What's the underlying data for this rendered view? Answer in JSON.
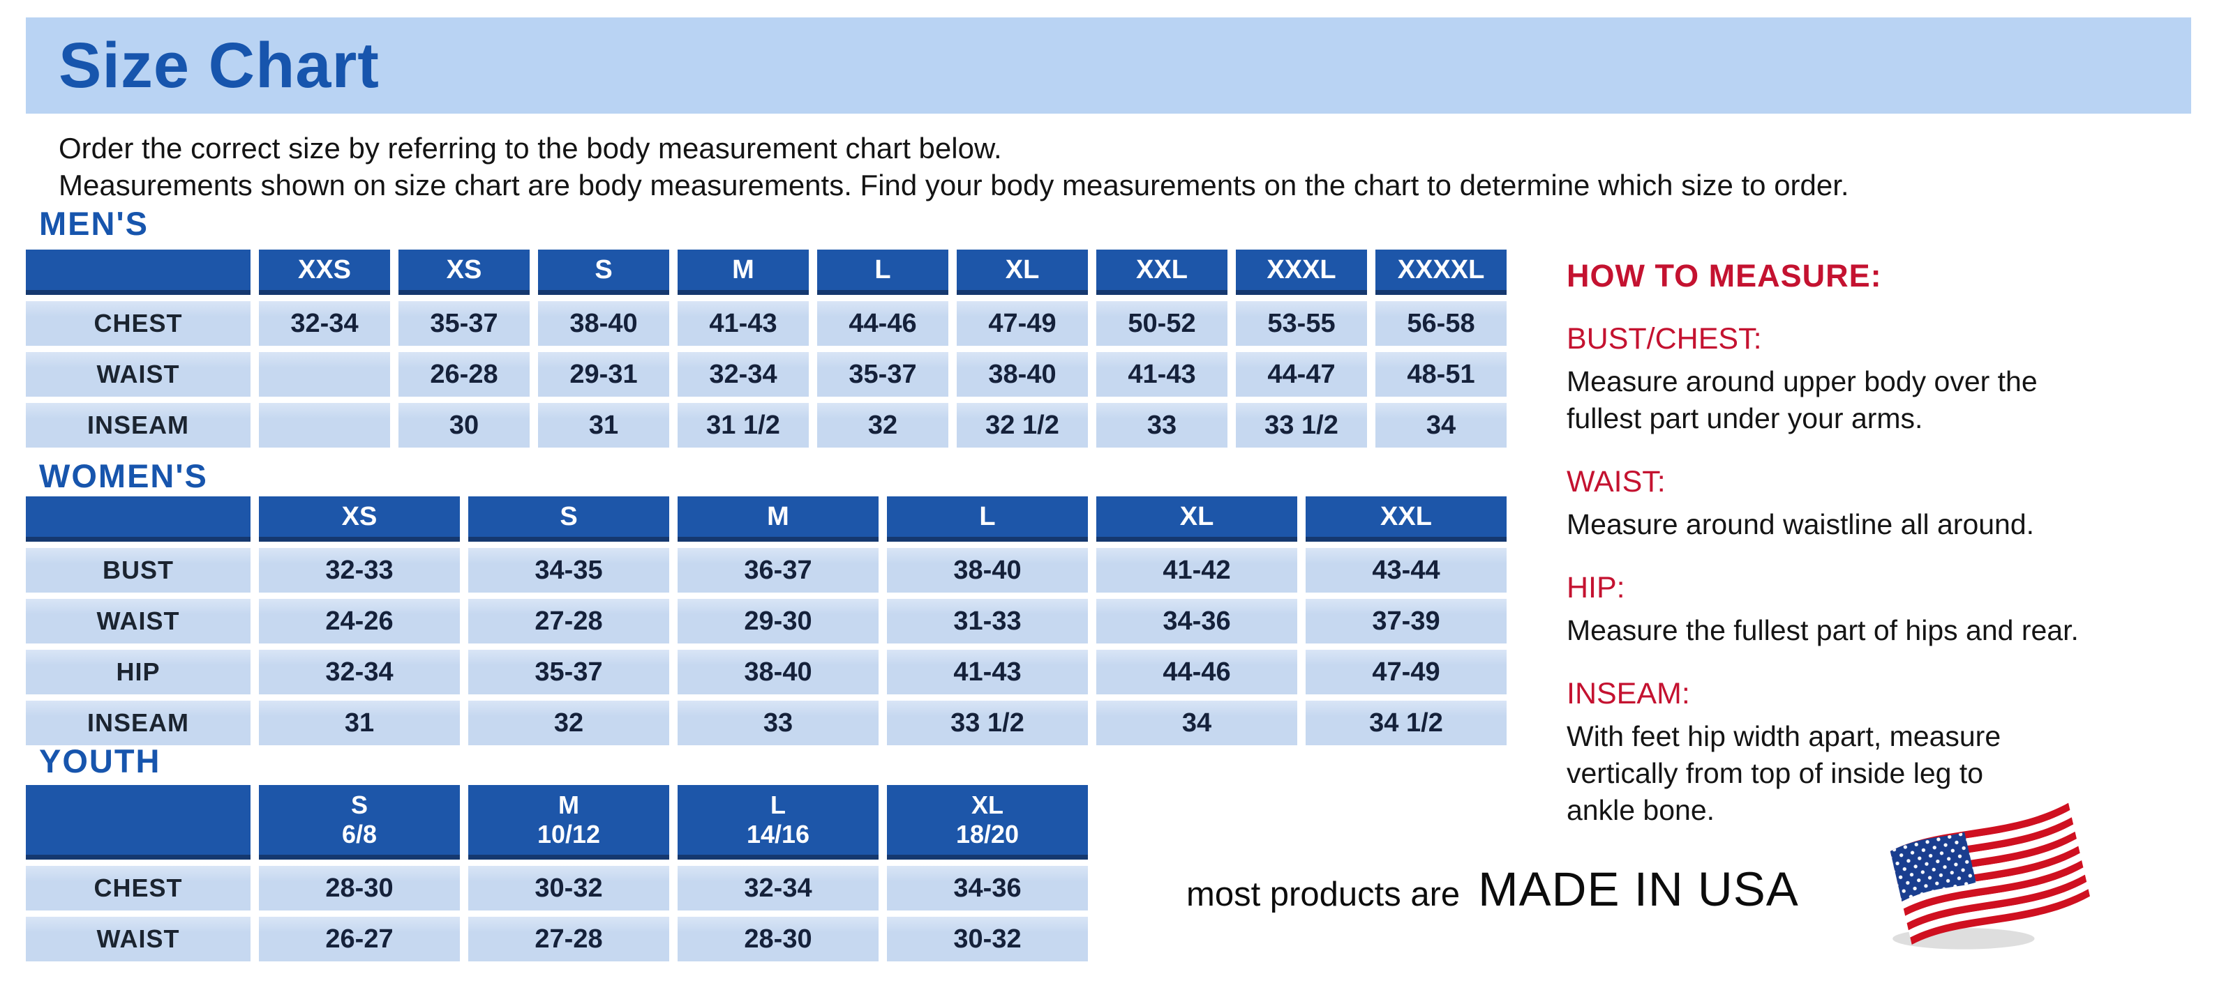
{
  "title": "Size Chart",
  "intro": {
    "line1": "Order the correct size by referring to the body measurement chart below.",
    "line2": "Measurements shown on size chart are body measurements.  Find your body measurements on the chart to determine which size to order."
  },
  "tables": [
    {
      "id": "mens",
      "heading": "MEN'S",
      "columns": [
        "XXS",
        "XS",
        "S",
        "M",
        "L",
        "XL",
        "XXL",
        "XXXL",
        "XXXXL"
      ],
      "rows": [
        {
          "label": "CHEST",
          "values": [
            "32-34",
            "35-37",
            "38-40",
            "41-43",
            "44-46",
            "47-49",
            "50-52",
            "53-55",
            "56-58"
          ]
        },
        {
          "label": "WAIST",
          "values": [
            "",
            "26-28",
            "29-31",
            "32-34",
            "35-37",
            "38-40",
            "41-43",
            "44-47",
            "48-51"
          ]
        },
        {
          "label": "INSEAM",
          "values": [
            "",
            "30",
            "31",
            "31 1/2",
            "32",
            "32 1/2",
            "33",
            "33 1/2",
            "34"
          ]
        }
      ]
    },
    {
      "id": "womens",
      "heading": "WOMEN'S",
      "columns": [
        "XS",
        "S",
        "M",
        "L",
        "XL",
        "XXL"
      ],
      "rows": [
        {
          "label": "BUST",
          "values": [
            "32-33",
            "34-35",
            "36-37",
            "38-40",
            "41-42",
            "43-44"
          ]
        },
        {
          "label": "WAIST",
          "values": [
            "24-26",
            "27-28",
            "29-30",
            "31-33",
            "34-36",
            "37-39"
          ]
        },
        {
          "label": "HIP",
          "values": [
            "32-34",
            "35-37",
            "38-40",
            "41-43",
            "44-46",
            "47-49"
          ]
        },
        {
          "label": "INSEAM",
          "values": [
            "31",
            "32",
            "33",
            "33 1/2",
            "34",
            "34 1/2"
          ]
        }
      ]
    },
    {
      "id": "youth",
      "heading": "YOUTH",
      "columns": [
        {
          "size": "S",
          "range": "6/8"
        },
        {
          "size": "M",
          "range": "10/12"
        },
        {
          "size": "L",
          "range": "14/16"
        },
        {
          "size": "XL",
          "range": "18/20"
        }
      ],
      "rows": [
        {
          "label": "CHEST",
          "values": [
            "28-30",
            "30-32",
            "32-34",
            "34-36"
          ]
        },
        {
          "label": "WAIST",
          "values": [
            "26-27",
            "27-28",
            "28-30",
            "30-32"
          ]
        }
      ]
    }
  ],
  "how_to_measure": {
    "heading": "HOW TO MEASURE:",
    "items": [
      {
        "label": "BUST/CHEST:",
        "text": "Measure around upper body over the\nfullest part under your arms."
      },
      {
        "label": "WAIST:",
        "text": "Measure around waistline all around."
      },
      {
        "label": "HIP:",
        "text": "Measure the fullest part of hips and rear."
      },
      {
        "label": "INSEAM:",
        "text": "With feet hip width apart, measure\nvertically from top of inside leg to\nankle bone."
      }
    ]
  },
  "footer": {
    "prefix": "most products are",
    "emphasis": "MADE IN USA",
    "flag_icon": "us-flag-icon"
  },
  "colors": {
    "accent_blue": "#1755ad",
    "header_blue": "#1d56a9",
    "header_border": "#15386f",
    "cell_blue": "#c9daf1",
    "titlebar_blue": "#b9d3f3",
    "red": "#c41230",
    "flag_red": "#cf1020",
    "flag_blue": "#1a3e8f"
  }
}
